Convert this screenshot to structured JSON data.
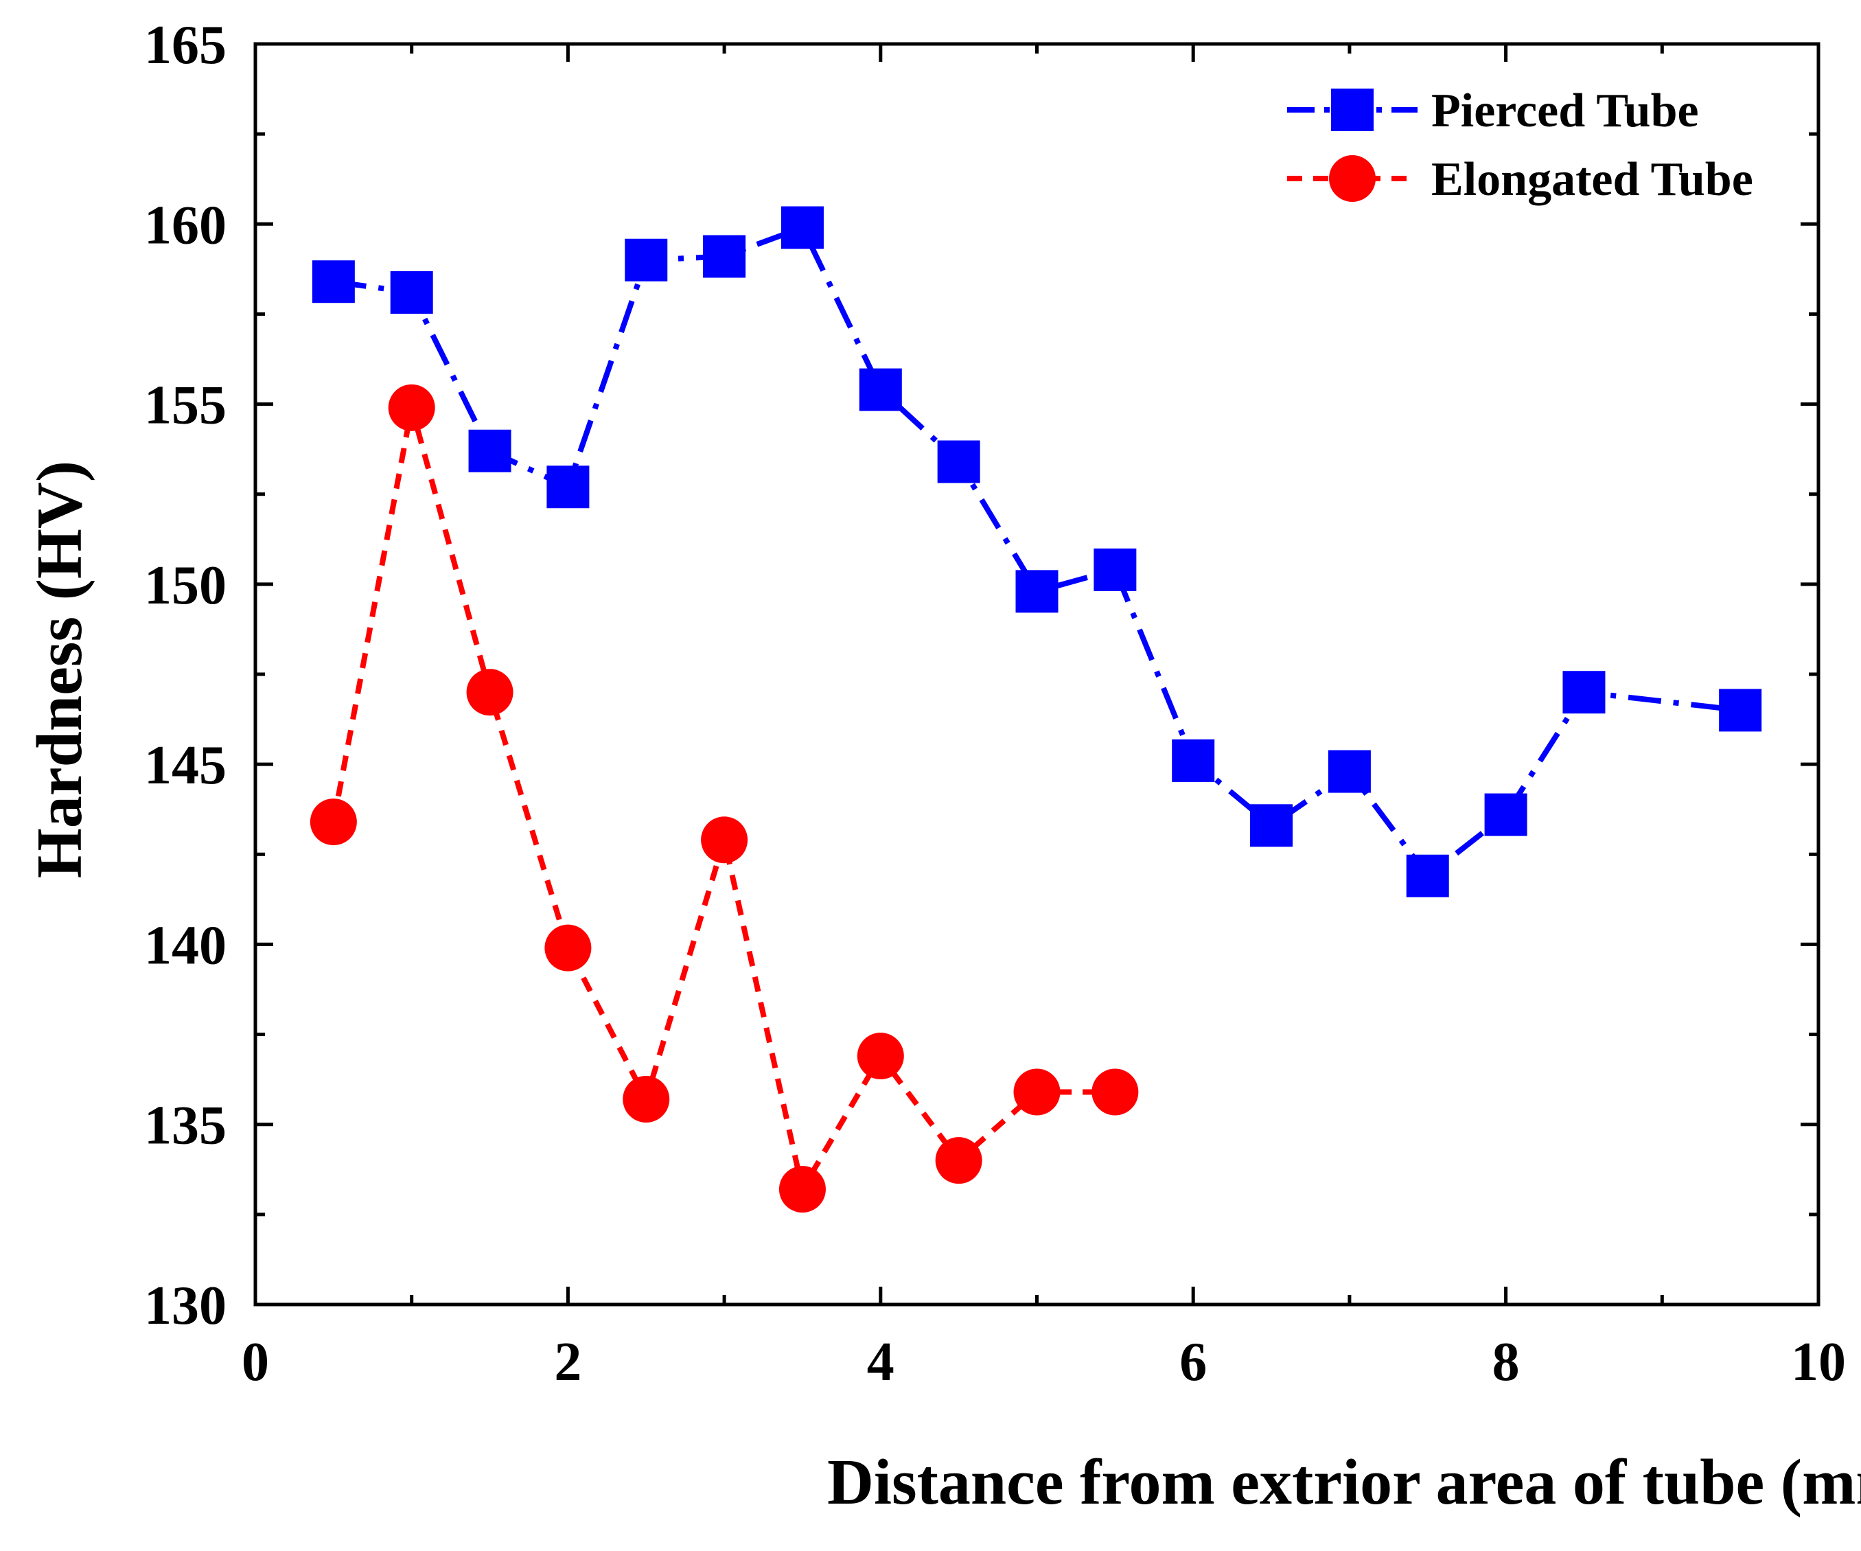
{
  "chart_data": {
    "type": "line",
    "title": "",
    "xlabel": "Distance from extrior area of tube (mm)",
    "ylabel": "Hardness (HV)",
    "xlim": [
      0,
      10
    ],
    "ylim": [
      130,
      165
    ],
    "xticks": [
      0,
      2,
      4,
      6,
      8,
      10
    ],
    "xticks_minor": [
      1,
      3,
      5,
      7,
      9
    ],
    "yticks": [
      130,
      135,
      140,
      145,
      150,
      155,
      160,
      165
    ],
    "legend_position": "top-right",
    "grid": false,
    "series": [
      {
        "name": "Pierced Tube",
        "color": "#0000ff",
        "marker": "square",
        "line_style": "dash-dot",
        "x": [
          0.5,
          1.0,
          1.5,
          2.0,
          2.5,
          3.0,
          3.5,
          4.0,
          4.5,
          5.0,
          5.5,
          6.0,
          6.5,
          7.0,
          7.5,
          8.0,
          8.5,
          9.5
        ],
        "y": [
          158.4,
          158.1,
          153.7,
          152.7,
          159.0,
          159.1,
          159.9,
          155.4,
          153.4,
          149.8,
          150.4,
          145.1,
          143.3,
          144.8,
          141.9,
          143.6,
          147.0,
          146.5
        ]
      },
      {
        "name": "Elongated Tube",
        "color": "#ff0000",
        "marker": "circle",
        "line_style": "dashed",
        "x": [
          0.5,
          1.0,
          1.5,
          2.0,
          2.5,
          3.0,
          3.5,
          4.0,
          4.5,
          5.0,
          5.5
        ],
        "y": [
          143.4,
          154.9,
          147.0,
          139.9,
          135.7,
          142.9,
          133.2,
          136.9,
          134.0,
          135.9,
          135.9
        ]
      }
    ]
  }
}
